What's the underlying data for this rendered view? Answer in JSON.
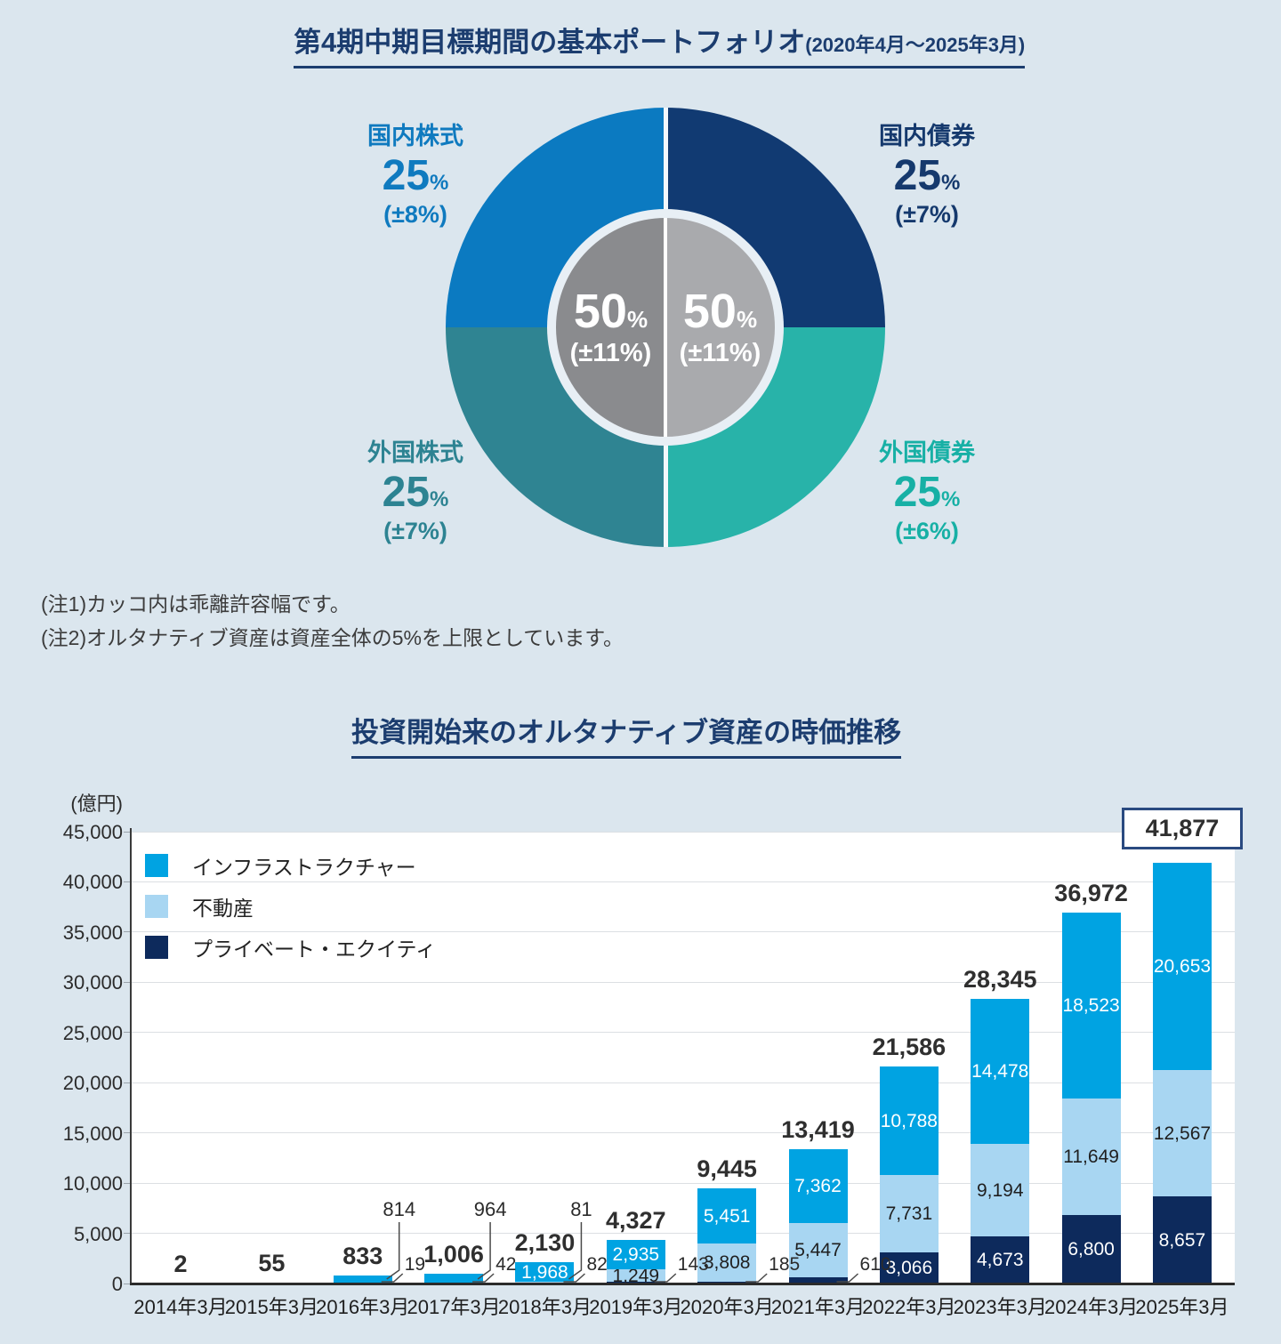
{
  "sections": {
    "portfolio": {
      "title": "第4期中期目標期間の基本ポートフォリオ",
      "title_suffix": "(2020年4月～2025年3月)",
      "notes": [
        "(注1)カッコ内は乖離許容幅です。",
        "(注2)オルタナティブ資産は資産全体の5%を上限としています。"
      ]
    },
    "alternative": {
      "title": "投資開始来のオルタナティブ資産の時価推移"
    }
  },
  "chart_data": [
    {
      "type": "pie",
      "subtype": "donut",
      "title": "第4期中期目標期間の基本ポートフォリオ(2020年4月～2025年3月)",
      "slices": [
        {
          "label": "国内株式",
          "value": 25,
          "unit": "%",
          "tolerance": "(±8%)",
          "color": "#0b7ac1",
          "position": "top-left"
        },
        {
          "label": "国内債券",
          "value": 25,
          "unit": "%",
          "tolerance": "(±7%)",
          "color": "#113a72",
          "position": "top-right"
        },
        {
          "label": "外国株式",
          "value": 25,
          "unit": "%",
          "tolerance": "(±7%)",
          "color": "#2f8492",
          "position": "bottom-left"
        },
        {
          "label": "外国債券",
          "value": 25,
          "unit": "%",
          "tolerance": "(±6%)",
          "color": "#28b3a9",
          "position": "bottom-right"
        }
      ],
      "center": [
        {
          "value": 50,
          "unit": "%",
          "tolerance": "(±11%)",
          "color": "#8a8b8e",
          "side": "left"
        },
        {
          "value": 50,
          "unit": "%",
          "tolerance": "(±11%)",
          "color": "#a9aaad",
          "side": "right"
        }
      ]
    },
    {
      "type": "bar",
      "stacked": true,
      "title": "投資開始来のオルタナティブ資産の時価推移",
      "ylabel": "(億円)",
      "ylim": [
        0,
        45000
      ],
      "ytick_step": 5000,
      "grid": true,
      "legend_position": "top-left-inside",
      "categories": [
        "2014年3月",
        "2015年3月",
        "2016年3月",
        "2017年3月",
        "2018年3月",
        "2019年3月",
        "2020年3月",
        "2021年3月",
        "2022年3月",
        "2023年3月",
        "2024年3月",
        "2025年3月"
      ],
      "series": [
        {
          "name": "プライベート・エクイティ",
          "color": "#0d2a5c",
          "label_color": "#ffffff",
          "values": [
            0,
            0,
            19,
            42,
            82,
            143,
            185,
            610,
            3066,
            4673,
            6800,
            8657
          ]
        },
        {
          "name": "不動産",
          "color": "#a8d6f2",
          "label_color": "#1f1f1f",
          "values": [
            0,
            0,
            0,
            0,
            81,
            1249,
            3808,
            5447,
            7731,
            9194,
            11649,
            12567
          ]
        },
        {
          "name": "インフラストラクチャー",
          "color": "#00a3e2",
          "label_color": "#ffffff",
          "values": [
            2,
            55,
            814,
            964,
            1968,
            2935,
            5451,
            7362,
            10788,
            14478,
            18523,
            20653
          ]
        }
      ],
      "legend_order": [
        2,
        1,
        0
      ],
      "totals": [
        2,
        55,
        833,
        1006,
        2130,
        4327,
        9445,
        13419,
        21586,
        28345,
        36972,
        41877
      ],
      "last_total_boxed": true,
      "callouts": [
        {
          "category_index": 2,
          "series_index": 2,
          "style": "raised"
        },
        {
          "category_index": 2,
          "series_index": 0,
          "style": "side"
        },
        {
          "category_index": 3,
          "series_index": 2,
          "style": "raised"
        },
        {
          "category_index": 3,
          "series_index": 0,
          "style": "side"
        },
        {
          "category_index": 4,
          "series_index": 1,
          "style": "raised"
        },
        {
          "category_index": 4,
          "series_index": 0,
          "style": "side"
        },
        {
          "category_index": 5,
          "series_index": 0,
          "style": "side"
        },
        {
          "category_index": 6,
          "series_index": 0,
          "style": "side"
        },
        {
          "category_index": 7,
          "series_index": 0,
          "style": "side"
        }
      ]
    }
  ]
}
